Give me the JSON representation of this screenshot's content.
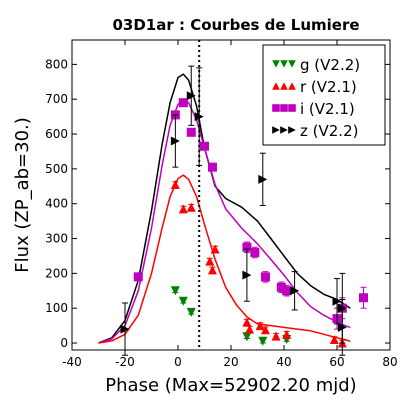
{
  "chart_data": {
    "type": "scatter",
    "title": "03D1ar : Courbes de Lumiere",
    "xlabel": "Phase (Max=52902.20 mjd)",
    "ylabel": "Flux (ZP_ab=30.)",
    "xlim": [
      -40,
      80
    ],
    "ylim": [
      -20,
      870
    ],
    "xticks": [
      -40,
      -20,
      0,
      20,
      40,
      60,
      80
    ],
    "yticks": [
      0,
      100,
      200,
      300,
      400,
      500,
      600,
      700,
      800
    ],
    "vline_x": 8,
    "legend_position": "top-right",
    "series": [
      {
        "name": "g (V2.2)",
        "color": "#008000",
        "marker": "triangle-down",
        "points": [
          [
            -1,
            150,
            5
          ],
          [
            2,
            120,
            5
          ],
          [
            5,
            88,
            5
          ],
          [
            26,
            18,
            5
          ],
          [
            32,
            5,
            5
          ],
          [
            41,
            10,
            5
          ]
        ]
      },
      {
        "name": "r (V2.1)",
        "color": "#ff0000",
        "marker": "triangle-up",
        "points": [
          [
            -1,
            455,
            8
          ],
          [
            2,
            385,
            8
          ],
          [
            5,
            390,
            8
          ],
          [
            12,
            235,
            8
          ],
          [
            13,
            210,
            8
          ],
          [
            14,
            270,
            8
          ],
          [
            26,
            60,
            8
          ],
          [
            27,
            40,
            8
          ],
          [
            31,
            50,
            8
          ],
          [
            33,
            38,
            8
          ],
          [
            37,
            20,
            8
          ],
          [
            41,
            25,
            8
          ],
          [
            59,
            10,
            8
          ],
          [
            62,
            0,
            8
          ]
        ]
      },
      {
        "name": "i (V2.1)",
        "color": "#bf00bf",
        "marker": "square",
        "points": [
          [
            -15,
            190,
            10
          ],
          [
            -1,
            655,
            10
          ],
          [
            2,
            690,
            10
          ],
          [
            5,
            605,
            10
          ],
          [
            10,
            565,
            10
          ],
          [
            13,
            505,
            10
          ],
          [
            26,
            275,
            15
          ],
          [
            29,
            260,
            15
          ],
          [
            33,
            190,
            15
          ],
          [
            39,
            160,
            15
          ],
          [
            41,
            150,
            15
          ],
          [
            60,
            70,
            30
          ],
          [
            62,
            100,
            30
          ],
          [
            70,
            130,
            30
          ]
        ]
      },
      {
        "name": "z (V2.2)",
        "color": "#000000",
        "marker": "triangle-right",
        "points": [
          [
            -20,
            40,
            75
          ],
          [
            -1,
            580,
            75
          ],
          [
            5,
            710,
            85
          ],
          [
            8,
            650,
            140
          ],
          [
            32,
            470,
            75
          ],
          [
            26,
            195,
            75
          ],
          [
            44,
            150,
            55
          ],
          [
            60,
            120,
            65
          ],
          [
            62,
            100,
            100
          ],
          [
            62,
            45,
            80
          ]
        ]
      }
    ],
    "curves": [
      {
        "color": "#000000",
        "points": [
          [
            -30,
            0
          ],
          [
            -25,
            15
          ],
          [
            -20,
            65
          ],
          [
            -15,
            180
          ],
          [
            -10,
            380
          ],
          [
            -6,
            570
          ],
          [
            -3,
            690
          ],
          [
            0,
            762
          ],
          [
            2,
            772
          ],
          [
            4,
            755
          ],
          [
            7,
            680
          ],
          [
            10,
            560
          ],
          [
            14,
            450
          ],
          [
            18,
            415
          ],
          [
            24,
            390
          ],
          [
            30,
            350
          ],
          [
            35,
            300
          ],
          [
            40,
            250
          ],
          [
            45,
            200
          ],
          [
            50,
            165
          ],
          [
            55,
            140
          ],
          [
            60,
            125
          ],
          [
            63,
            110
          ],
          [
            65,
            100
          ]
        ]
      },
      {
        "color": "#bf00bf",
        "points": [
          [
            -30,
            0
          ],
          [
            -25,
            12
          ],
          [
            -20,
            50
          ],
          [
            -15,
            150
          ],
          [
            -10,
            330
          ],
          [
            -6,
            510
          ],
          [
            -3,
            625
          ],
          [
            0,
            685
          ],
          [
            2,
            700
          ],
          [
            4,
            690
          ],
          [
            7,
            640
          ],
          [
            10,
            560
          ],
          [
            14,
            455
          ],
          [
            18,
            385
          ],
          [
            24,
            330
          ],
          [
            30,
            285
          ],
          [
            35,
            240
          ],
          [
            40,
            195
          ],
          [
            45,
            145
          ],
          [
            50,
            105
          ],
          [
            55,
            80
          ],
          [
            60,
            60
          ],
          [
            63,
            50
          ],
          [
            65,
            45
          ]
        ]
      },
      {
        "color": "#ff0000",
        "points": [
          [
            -30,
            0
          ],
          [
            -25,
            6
          ],
          [
            -20,
            25
          ],
          [
            -15,
            80
          ],
          [
            -10,
            200
          ],
          [
            -6,
            330
          ],
          [
            -3,
            420
          ],
          [
            0,
            472
          ],
          [
            2,
            482
          ],
          [
            4,
            470
          ],
          [
            7,
            420
          ],
          [
            10,
            340
          ],
          [
            14,
            240
          ],
          [
            18,
            160
          ],
          [
            22,
            110
          ],
          [
            26,
            75
          ],
          [
            30,
            55
          ],
          [
            35,
            50
          ],
          [
            40,
            45
          ],
          [
            45,
            40
          ],
          [
            50,
            35
          ],
          [
            55,
            25
          ],
          [
            60,
            15
          ],
          [
            63,
            10
          ],
          [
            65,
            5
          ]
        ]
      }
    ]
  }
}
